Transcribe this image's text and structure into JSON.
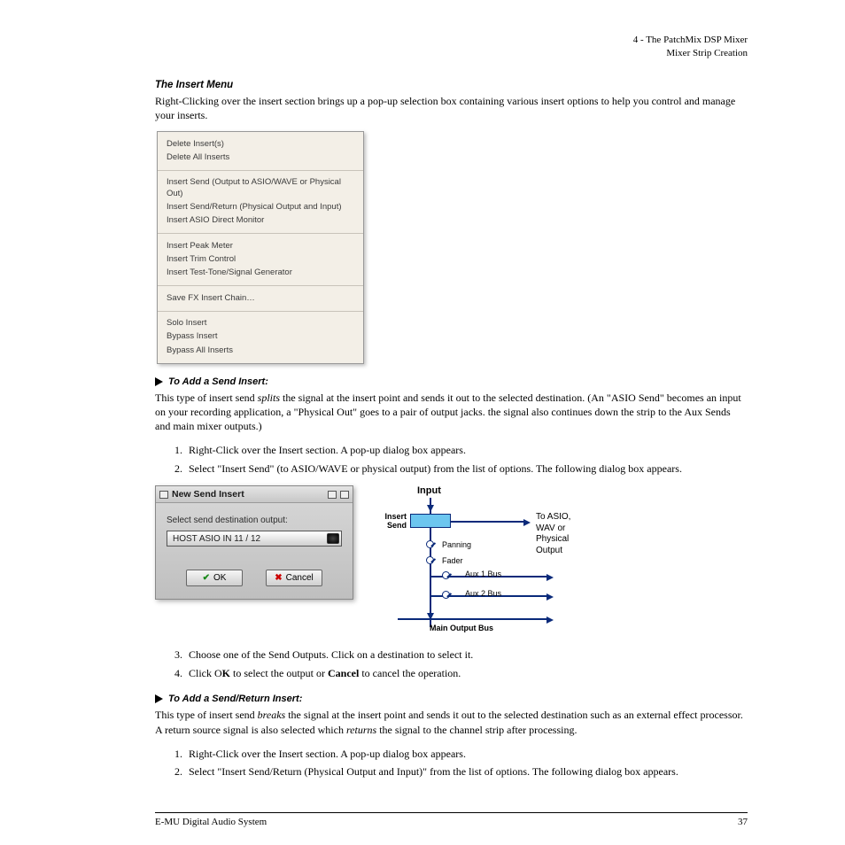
{
  "header": {
    "l1": "4 - The PatchMix DSP Mixer",
    "l2": "Mixer Strip Creation"
  },
  "section_title": "The Insert Menu",
  "intro": "Right-Clicking over the insert section brings up a pop-up selection box containing various insert options to help you control and manage your inserts.",
  "context_menu": {
    "groups": [
      [
        "Delete Insert(s)",
        "Delete All Inserts"
      ],
      [
        "Insert Send (Output to ASIO/WAVE or Physical Out)",
        "Insert Send/Return (Physical Output and Input)",
        "Insert ASIO Direct Monitor"
      ],
      [
        "Insert Peak Meter",
        "Insert Trim Control",
        "Insert Test-Tone/Signal Generator"
      ],
      [
        "Save FX Insert Chain…"
      ],
      [
        "Solo Insert",
        "Bypass Insert",
        "Bypass All Inserts"
      ]
    ]
  },
  "sub1_title": "To Add a Send Insert:",
  "sub1_para_before": "This type of insert send ",
  "sub1_italic": "splits",
  "sub1_para_after": " the signal at the insert point and sends it out to the selected destination. (An \"ASIO Send\" becomes an input on your recording application, a \"Physical Out\" goes to a pair of output jacks. the signal also continues down the strip to the Aux Sends and main mixer outputs.)",
  "sub1_steps": [
    "Right-Click over the Insert section. A pop-up dialog box appears.",
    "Select \"Insert Send\" (to ASIO/WAVE or physical output) from the list of options. The following dialog box appears."
  ],
  "dialog": {
    "title": "New Send Insert",
    "label": "Select send destination output:",
    "selected": "HOST ASIO IN 11 / 12",
    "ok": "OK",
    "cancel": "Cancel"
  },
  "flow": {
    "input": "Input",
    "insert_send_l1": "Insert",
    "insert_send_l2": "Send",
    "output_l1": "To ASIO, WAV or",
    "output_l2": "Physical Output",
    "panning": "Panning",
    "fader": "Fader",
    "aux1": "Aux 1 Bus",
    "aux2": "Aux 2 Bus",
    "main": "Main Output Bus",
    "colors": {
      "line": "#0a2a7a",
      "box": "#6cc6ef"
    }
  },
  "sub1_steps2": [
    "Choose one of the Send Outputs. Click on a destination to select it.",
    {
      "prefix": "Click O",
      "bold1": "K",
      "mid": " to select the output or ",
      "bold2": "Cancel",
      "suffix": " to cancel the operation."
    }
  ],
  "sub2_title": "To Add a Send/Return Insert:",
  "sub2_para_a": "This type of insert send ",
  "sub2_it1": "breaks",
  "sub2_para_b": " the signal at the insert point and sends it out to the selected destination such as an external effect processor. A return source signal is also selected which ",
  "sub2_it2": "returns",
  "sub2_para_c": " the signal to the channel strip after processing.",
  "sub2_steps": [
    "Right-Click over the Insert section. A pop-up dialog box appears.",
    "Select \"Insert Send/Return (Physical Output and Input)\" from the list of options. The following dialog box appears."
  ],
  "footer": {
    "left": "E-MU Digital Audio System",
    "page": "37"
  }
}
